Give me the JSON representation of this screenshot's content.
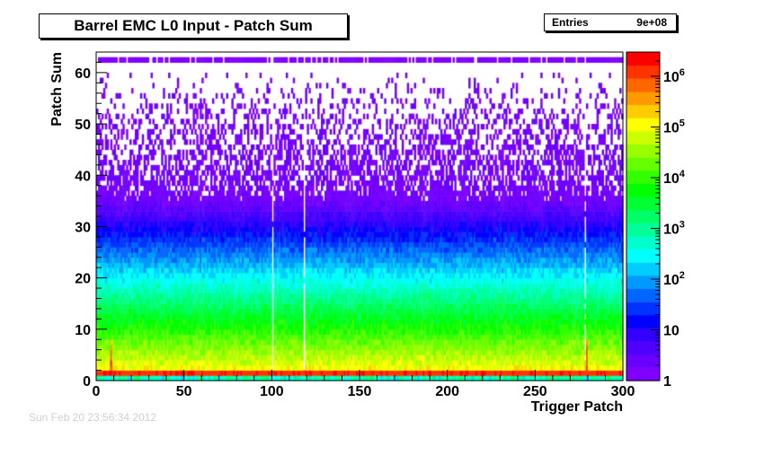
{
  "chart_data": {
    "type": "heatmap",
    "title": "Barrel EMC L0 Input - Patch Sum",
    "xlabel": "Trigger Patch",
    "ylabel": "Patch Sum",
    "xlim": [
      0,
      300
    ],
    "ylim": [
      0,
      64
    ],
    "x_ticks": [
      0,
      50,
      100,
      150,
      200,
      250,
      300
    ],
    "y_ticks": [
      0,
      10,
      20,
      30,
      40,
      50,
      60
    ],
    "z_scale": "log",
    "z_range": [
      1,
      3000000
    ],
    "z_ticks": [
      {
        "value": 1,
        "label": "1"
      },
      {
        "value": 10,
        "label": "10"
      },
      {
        "value": 100,
        "label": "10^2"
      },
      {
        "value": 1000,
        "label": "10^3"
      },
      {
        "value": 10000,
        "label": "10^4"
      },
      {
        "value": 100000,
        "label": "10^5"
      },
      {
        "value": 1000000,
        "label": "10^6"
      }
    ],
    "stats": {
      "entries_label": "Entries",
      "entries_value": "9e+08"
    },
    "empty_patches": [
      100,
      118,
      278
    ],
    "hot_patches": [
      8,
      279
    ],
    "band_rows": {
      "saturated_y": 1,
      "top_row_y": 62
    },
    "colors": {
      "palette": [
        "#7f00ff",
        "#6a00ff",
        "#4f00ff",
        "#3300ff",
        "#0000ff",
        "#0033ff",
        "#0066ff",
        "#0099ff",
        "#00ccff",
        "#00ffff",
        "#00ffcc",
        "#00ff99",
        "#00ff66",
        "#00ff33",
        "#00ff00",
        "#33ff00",
        "#66ff00",
        "#99ff00",
        "#ccff00",
        "#ffff00",
        "#ffcc00",
        "#ff9900",
        "#ff6600",
        "#ff3300",
        "#ff0000"
      ]
    }
  },
  "footer": {
    "text": "Sun Feb 20 23:56:34 2012"
  }
}
